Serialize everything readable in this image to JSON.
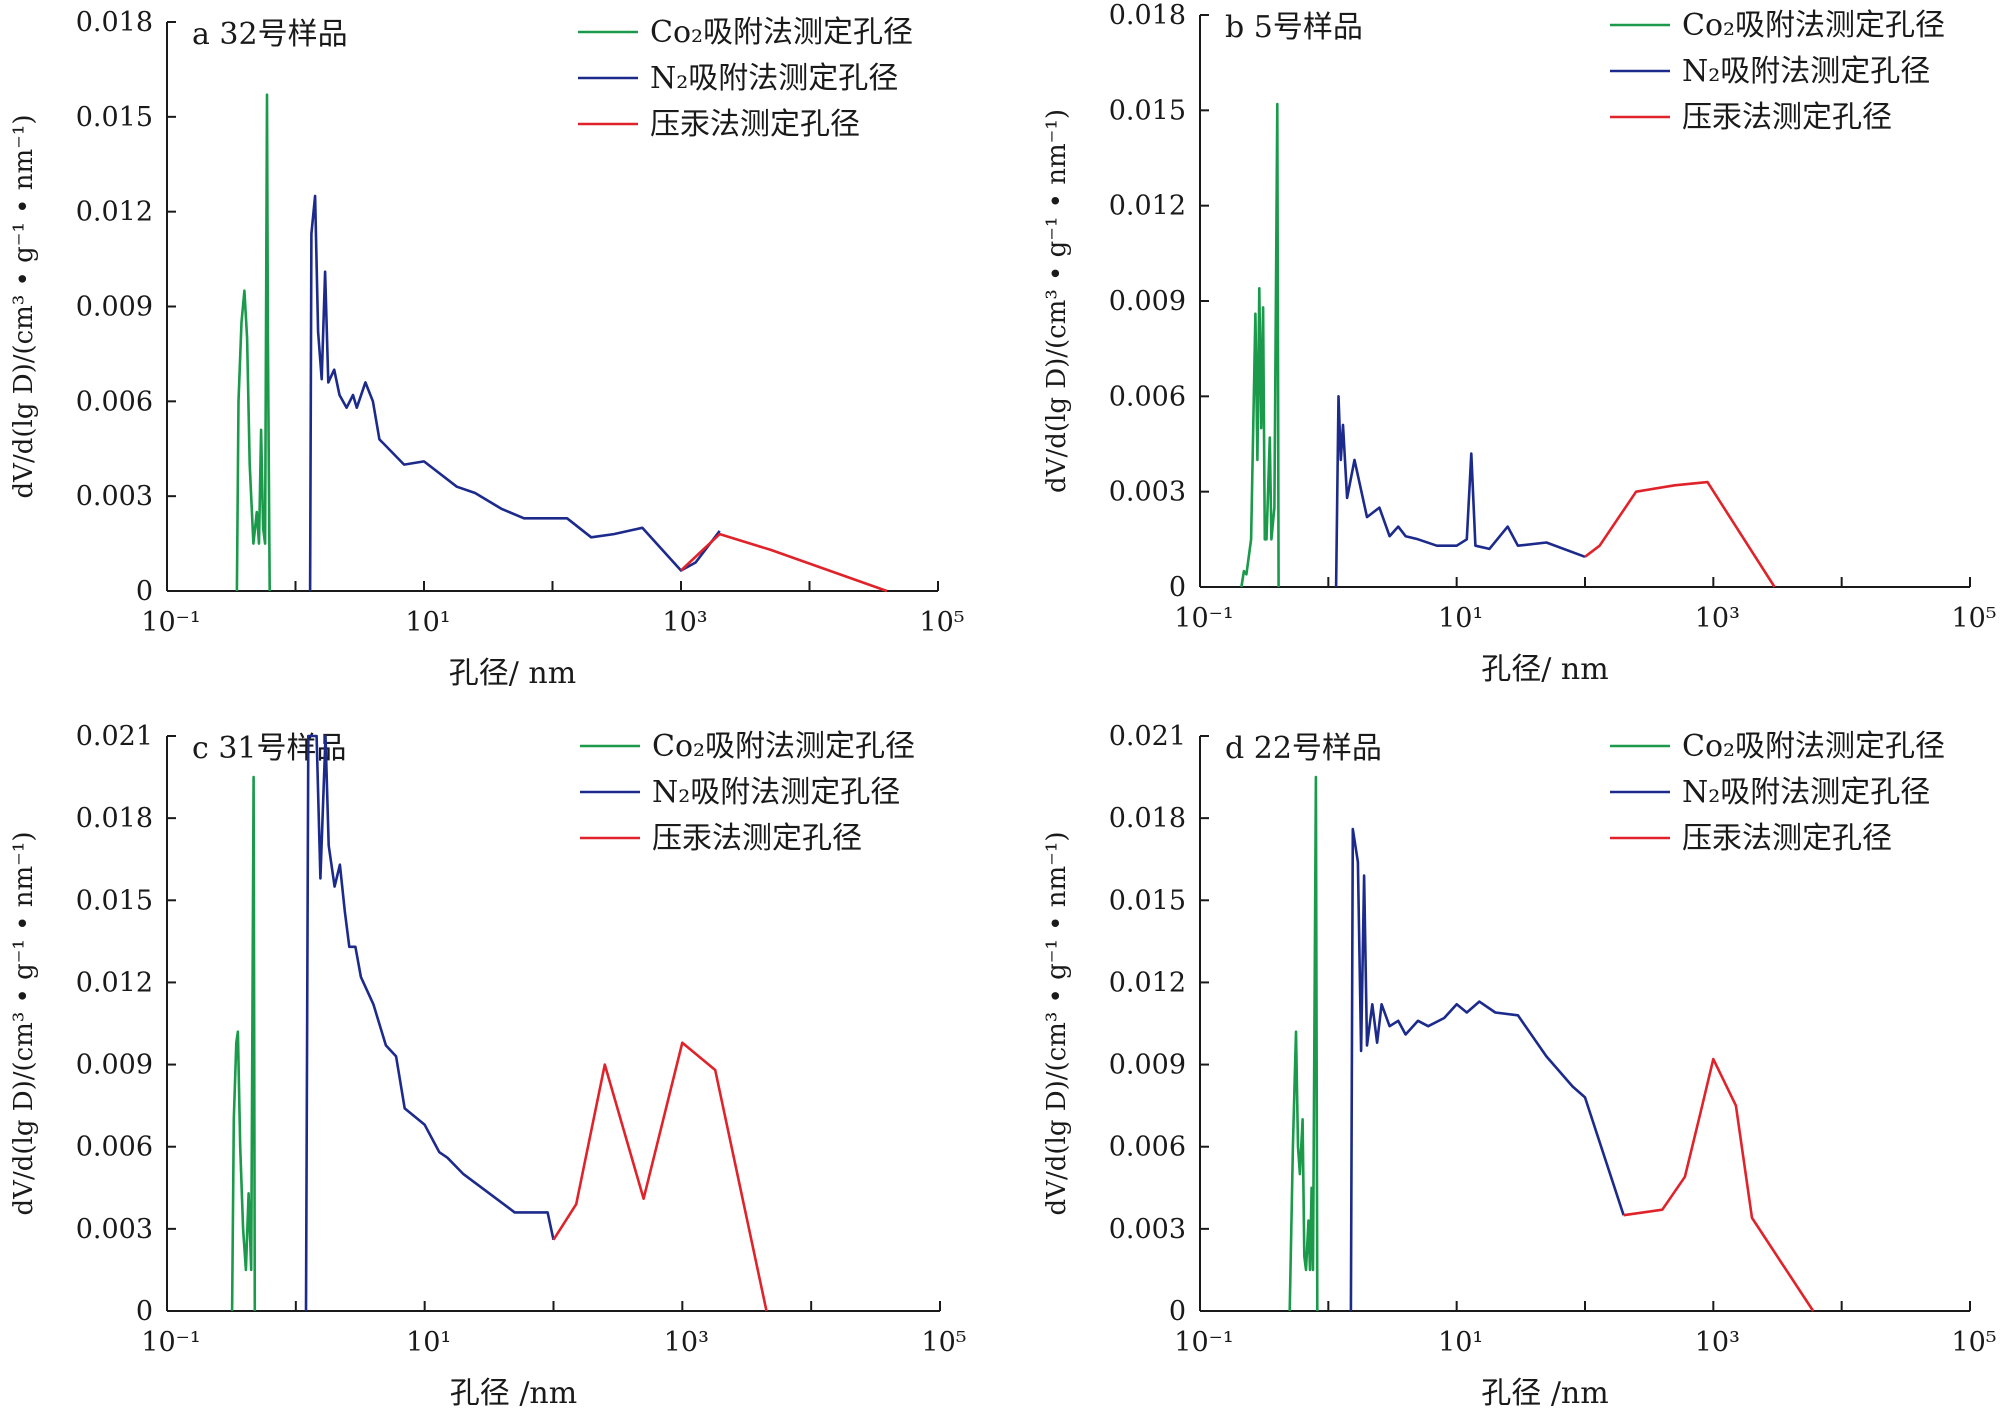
{
  "figure": {
    "xlabel_unit": "nm"
  },
  "colors": {
    "co2": "#1a9a4a",
    "n2": "#1c2a8c",
    "hg": "#e0232a",
    "axis": "#1a1a1a"
  },
  "chart_data": [
    {
      "type": "line",
      "panel_label": "a 32号样品",
      "xlabel": "孔径/ nm",
      "ylabel": "dV/d(lg D)/(cm³ • g⁻¹ • nm⁻¹)",
      "xscale": "log",
      "xlim": [
        0.1,
        100000
      ],
      "x_ticks": [
        0.1,
        10,
        1000,
        100000
      ],
      "x_tick_labels": [
        "10⁻¹",
        "10¹",
        "10³",
        "10⁵"
      ],
      "ylim": [
        0,
        0.018
      ],
      "y_ticks": [
        0,
        0.003,
        0.006,
        0.009,
        0.012,
        0.015,
        0.018
      ],
      "y_tick_labels": [
        "0",
        "0.003",
        "0.006",
        "0.009",
        "0.012",
        "0.015",
        "0.018"
      ],
      "legend": {
        "position": "top-right",
        "entries": [
          "Co₂吸附法测定孔径",
          "N₂吸附法测定孔径",
          "压汞法测定孔径"
        ]
      },
      "series": [
        {
          "name": "Co₂吸附法测定孔径",
          "color_key": "co2",
          "points": [
            [
              0.35,
              0
            ],
            [
              0.36,
              0.006
            ],
            [
              0.38,
              0.0085
            ],
            [
              0.4,
              0.0095
            ],
            [
              0.42,
              0.008
            ],
            [
              0.44,
              0.004
            ],
            [
              0.47,
              0.0015
            ],
            [
              0.5,
              0.0025
            ],
            [
              0.52,
              0.0015
            ],
            [
              0.54,
              0.0051
            ],
            [
              0.56,
              0.002
            ],
            [
              0.58,
              0.0015
            ],
            [
              0.6,
              0.0157
            ],
            [
              0.61,
              0.008
            ],
            [
              0.63,
              0
            ]
          ]
        },
        {
          "name": "N₂吸附法测定孔径",
          "color_key": "n2",
          "points": [
            [
              1.3,
              0
            ],
            [
              1.33,
              0.0113
            ],
            [
              1.42,
              0.0125
            ],
            [
              1.5,
              0.0082
            ],
            [
              1.6,
              0.0067
            ],
            [
              1.7,
              0.0101
            ],
            [
              1.8,
              0.0066
            ],
            [
              2.0,
              0.007
            ],
            [
              2.2,
              0.0062
            ],
            [
              2.5,
              0.0058
            ],
            [
              2.8,
              0.0062
            ],
            [
              3.0,
              0.0058
            ],
            [
              3.5,
              0.0066
            ],
            [
              4.0,
              0.006
            ],
            [
              4.5,
              0.0048
            ],
            [
              7,
              0.004
            ],
            [
              10,
              0.0041
            ],
            [
              18,
              0.0033
            ],
            [
              25,
              0.0031
            ],
            [
              40,
              0.0026
            ],
            [
              60,
              0.0023
            ],
            [
              100,
              0.0023
            ],
            [
              130,
              0.0023
            ],
            [
              200,
              0.0017
            ],
            [
              300,
              0.0018
            ],
            [
              500,
              0.002
            ],
            [
              1000,
              0.00065
            ],
            [
              1300,
              0.0009
            ],
            [
              2000,
              0.0019
            ]
          ]
        },
        {
          "name": "压汞法测定孔径",
          "color_key": "hg",
          "points": [
            [
              1000,
              0.00065
            ],
            [
              2000,
              0.0018
            ],
            [
              5000,
              0.0013
            ],
            [
              40000,
              0
            ]
          ]
        }
      ]
    },
    {
      "type": "line",
      "panel_label": "b 5号样品",
      "xlabel": "孔径/ nm",
      "ylabel": "dV/d(lg D)/(cm³ • g⁻¹ • nm⁻¹)",
      "xscale": "log",
      "xlim": [
        0.1,
        100000
      ],
      "x_ticks": [
        0.1,
        10,
        1000,
        100000
      ],
      "x_tick_labels": [
        "10⁻¹",
        "10¹",
        "10³",
        "10⁵"
      ],
      "ylim": [
        0,
        0.018
      ],
      "y_ticks": [
        0,
        0.003,
        0.006,
        0.009,
        0.012,
        0.015,
        0.018
      ],
      "y_tick_labels": [
        "0",
        "0.003",
        "0.006",
        "0.009",
        "0.012",
        "0.015",
        "0.018"
      ],
      "legend": {
        "position": "top-right",
        "entries": [
          "Co₂吸附法测定孔径",
          "N₂吸附法测定孔径",
          "压汞法测定孔径"
        ]
      },
      "series": [
        {
          "name": "Co₂吸附法测定孔径",
          "color_key": "co2",
          "points": [
            [
              0.21,
              0
            ],
            [
              0.22,
              0.0005
            ],
            [
              0.23,
              0.0004
            ],
            [
              0.25,
              0.0015
            ],
            [
              0.27,
              0.0086
            ],
            [
              0.28,
              0.004
            ],
            [
              0.29,
              0.0094
            ],
            [
              0.3,
              0.005
            ],
            [
              0.31,
              0.0088
            ],
            [
              0.32,
              0.0015
            ],
            [
              0.33,
              0.0015
            ],
            [
              0.35,
              0.0047
            ],
            [
              0.36,
              0.0015
            ],
            [
              0.38,
              0.0025
            ],
            [
              0.4,
              0.0152
            ],
            [
              0.41,
              0
            ]
          ]
        },
        {
          "name": "N₂吸附法测定孔径",
          "color_key": "n2",
          "points": [
            [
              1.15,
              0
            ],
            [
              1.2,
              0.006
            ],
            [
              1.25,
              0.004
            ],
            [
              1.3,
              0.0051
            ],
            [
              1.4,
              0.0028
            ],
            [
              1.6,
              0.004
            ],
            [
              2.0,
              0.0022
            ],
            [
              2.5,
              0.0025
            ],
            [
              3.0,
              0.0016
            ],
            [
              3.5,
              0.0019
            ],
            [
              4.0,
              0.0016
            ],
            [
              5,
              0.0015
            ],
            [
              7,
              0.0013
            ],
            [
              10,
              0.0013
            ],
            [
              12,
              0.0015
            ],
            [
              13,
              0.0042
            ],
            [
              14,
              0.0013
            ],
            [
              18,
              0.0012
            ],
            [
              25,
              0.0019
            ],
            [
              30,
              0.0013
            ],
            [
              50,
              0.0014
            ],
            [
              100,
              0.00095
            ]
          ]
        },
        {
          "name": "压汞法测定孔径",
          "color_key": "hg",
          "points": [
            [
              100,
              0.00095
            ],
            [
              130,
              0.0013
            ],
            [
              250,
              0.003
            ],
            [
              500,
              0.0032
            ],
            [
              900,
              0.0033
            ],
            [
              3000,
              0
            ]
          ]
        }
      ]
    },
    {
      "type": "line",
      "panel_label": "c 31号样品",
      "xlabel": "孔径 /nm",
      "ylabel": "dV/d(lg D)/(cm³ • g⁻¹ • nm⁻¹)",
      "xscale": "log",
      "xlim": [
        0.1,
        100000
      ],
      "x_ticks": [
        0.1,
        10,
        1000,
        100000
      ],
      "x_tick_labels": [
        "10⁻¹",
        "10¹",
        "10³",
        "10⁵"
      ],
      "ylim": [
        0,
        0.021
      ],
      "y_ticks": [
        0,
        0.003,
        0.006,
        0.009,
        0.012,
        0.015,
        0.018,
        0.021
      ],
      "y_tick_labels": [
        "0",
        "0.003",
        "0.006",
        "0.009",
        "0.012",
        "0.015",
        "0.018",
        "0.021"
      ],
      "legend": {
        "position": "top-right",
        "entries": [
          "Co₂吸附法测定孔径",
          "N₂吸附法测定孔径",
          "压汞法测定孔径"
        ]
      },
      "series": [
        {
          "name": "Co₂吸附法测定孔径",
          "color_key": "co2",
          "points": [
            [
              0.32,
              0
            ],
            [
              0.33,
              0.007
            ],
            [
              0.345,
              0.0098
            ],
            [
              0.355,
              0.0102
            ],
            [
              0.37,
              0.006
            ],
            [
              0.39,
              0.003
            ],
            [
              0.41,
              0.0015
            ],
            [
              0.43,
              0.0043
            ],
            [
              0.45,
              0.0015
            ],
            [
              0.47,
              0.0195
            ],
            [
              0.48,
              0
            ]
          ]
        },
        {
          "name": "N₂吸附法测定孔径",
          "color_key": "n2",
          "points": [
            [
              1.2,
              0
            ],
            [
              1.25,
              0.021
            ],
            [
              1.45,
              0.021
            ],
            [
              1.55,
              0.0158
            ],
            [
              1.7,
              0.021
            ],
            [
              1.8,
              0.017
            ],
            [
              2.0,
              0.0155
            ],
            [
              2.2,
              0.0163
            ],
            [
              2.4,
              0.0146
            ],
            [
              2.6,
              0.0133
            ],
            [
              2.9,
              0.0133
            ],
            [
              3.2,
              0.0122
            ],
            [
              4,
              0.0112
            ],
            [
              5,
              0.0097
            ],
            [
              6,
              0.0093
            ],
            [
              7,
              0.0074
            ],
            [
              10,
              0.0068
            ],
            [
              13,
              0.0058
            ],
            [
              15,
              0.0056
            ],
            [
              20,
              0.005
            ],
            [
              50,
              0.0036
            ],
            [
              90,
              0.0036
            ],
            [
              100,
              0.0026
            ]
          ]
        },
        {
          "name": "压汞法测定孔径",
          "color_key": "hg",
          "points": [
            [
              100,
              0.0026
            ],
            [
              150,
              0.0039
            ],
            [
              250,
              0.009
            ],
            [
              500,
              0.0041
            ],
            [
              1000,
              0.0098
            ],
            [
              1800,
              0.0088
            ],
            [
              4500,
              0
            ]
          ]
        }
      ]
    },
    {
      "type": "line",
      "panel_label": "d 22号样品",
      "xlabel": "孔径 /nm",
      "ylabel": "dV/d(lg D)/(cm³ • g⁻¹ • nm⁻¹)",
      "xscale": "log",
      "xlim": [
        0.1,
        100000
      ],
      "x_ticks": [
        0.1,
        10,
        1000,
        100000
      ],
      "x_tick_labels": [
        "10⁻¹",
        "10¹",
        "10³",
        "10⁵"
      ],
      "ylim": [
        0,
        0.021
      ],
      "y_ticks": [
        0,
        0.003,
        0.006,
        0.009,
        0.012,
        0.015,
        0.018,
        0.021
      ],
      "y_tick_labels": [
        "0",
        "0.003",
        "0.006",
        "0.009",
        "0.012",
        "0.015",
        "0.018",
        "0.021"
      ],
      "legend": {
        "position": "top-right",
        "entries": [
          "Co₂吸附法测定孔径",
          "N₂吸附法测定孔径",
          "压汞法测定孔径"
        ]
      },
      "series": [
        {
          "name": "Co₂吸附法测定孔径",
          "color_key": "co2",
          "points": [
            [
              0.5,
              0
            ],
            [
              0.53,
              0.006
            ],
            [
              0.56,
              0.0102
            ],
            [
              0.58,
              0.006
            ],
            [
              0.6,
              0.005
            ],
            [
              0.63,
              0.007
            ],
            [
              0.65,
              0.002
            ],
            [
              0.67,
              0.0015
            ],
            [
              0.7,
              0.0033
            ],
            [
              0.72,
              0.0015
            ],
            [
              0.74,
              0.0045
            ],
            [
              0.76,
              0.0015
            ],
            [
              0.8,
              0.0195
            ],
            [
              0.82,
              0
            ]
          ]
        },
        {
          "name": "N₂吸附法测定孔径",
          "color_key": "n2",
          "points": [
            [
              1.5,
              0
            ],
            [
              1.55,
              0.0176
            ],
            [
              1.7,
              0.0164
            ],
            [
              1.8,
              0.0095
            ],
            [
              1.9,
              0.0159
            ],
            [
              2.0,
              0.0097
            ],
            [
              2.2,
              0.0112
            ],
            [
              2.4,
              0.0098
            ],
            [
              2.6,
              0.0112
            ],
            [
              3.0,
              0.0104
            ],
            [
              3.5,
              0.0106
            ],
            [
              4.0,
              0.0101
            ],
            [
              5,
              0.0106
            ],
            [
              6,
              0.0104
            ],
            [
              8,
              0.0107
            ],
            [
              10,
              0.0112
            ],
            [
              12,
              0.0109
            ],
            [
              15,
              0.0113
            ],
            [
              20,
              0.0109
            ],
            [
              30,
              0.0108
            ],
            [
              50,
              0.0093
            ],
            [
              80,
              0.0082
            ],
            [
              100,
              0.0078
            ],
            [
              200,
              0.0035
            ]
          ]
        },
        {
          "name": "压汞法测定孔径",
          "color_key": "hg",
          "points": [
            [
              200,
              0.0035
            ],
            [
              400,
              0.0037
            ],
            [
              600,
              0.0049
            ],
            [
              800,
              0.0073
            ],
            [
              1000,
              0.0092
            ],
            [
              1500,
              0.0075
            ],
            [
              2000,
              0.0034
            ],
            [
              6000,
              0
            ]
          ]
        }
      ]
    }
  ]
}
